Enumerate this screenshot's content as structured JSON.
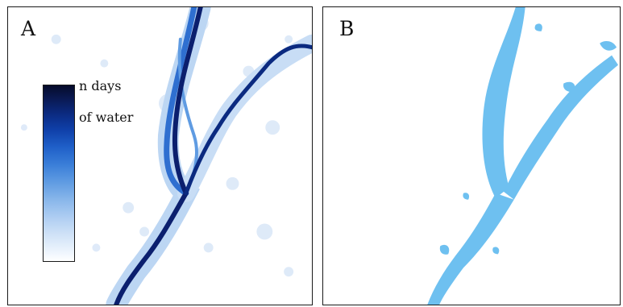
{
  "panels": [
    {
      "label": "A",
      "legend": {
        "line1": "n days",
        "line2": "of water"
      },
      "colors": {
        "water_high": "#0b1f6e",
        "water_mid": "#1f5fc8",
        "water_low": "#cfe0f7"
      }
    },
    {
      "label": "B",
      "colors": {
        "water_mask": "#6ec0f0"
      }
    }
  ]
}
